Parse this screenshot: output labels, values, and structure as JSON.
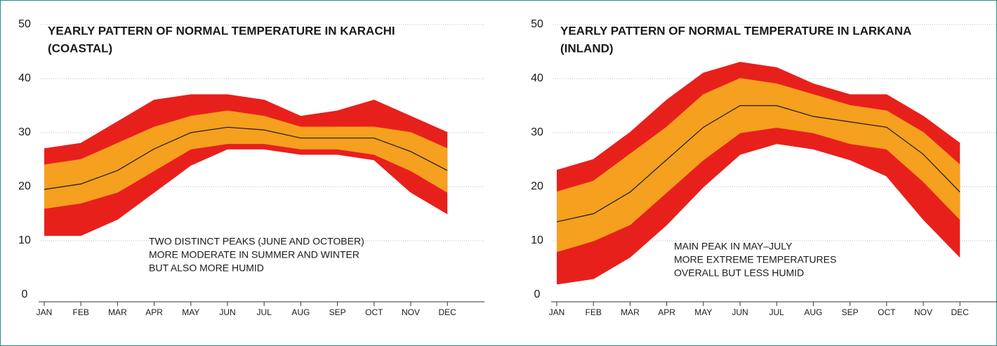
{
  "chart_data": [
    {
      "type": "band",
      "title": [
        "YEARLY PATTERN OF NORMAL TEMPERATURE IN KARACHI",
        "(COASTAL)"
      ],
      "categories": [
        "JAN",
        "FEB",
        "MAR",
        "APR",
        "MAY",
        "JUN",
        "JUL",
        "AUG",
        "SEP",
        "OCT",
        "NOV",
        "DEC"
      ],
      "bands": [
        {
          "color": "#e8201c",
          "high": [
            27,
            28,
            32,
            36,
            37,
            37,
            36,
            33,
            34,
            36,
            33,
            30
          ],
          "low": [
            11,
            11,
            14,
            19,
            24,
            27,
            27,
            26,
            26,
            25,
            19,
            15
          ]
        },
        {
          "color": "#f5a01e",
          "high": [
            24,
            25,
            28,
            31,
            33,
            34,
            33,
            31,
            31,
            31,
            30,
            27
          ],
          "low": [
            16,
            17,
            19,
            23,
            27,
            28,
            28,
            27,
            27,
            26,
            23,
            19
          ]
        }
      ],
      "series": [
        {
          "color": "#1a1a1a",
          "values": [
            19.5,
            20.5,
            23,
            27,
            30,
            31,
            30.5,
            29,
            29,
            29,
            26.5,
            23
          ]
        }
      ],
      "ylim": [
        0,
        50
      ],
      "yticks": [
        0,
        10,
        20,
        30,
        40,
        50
      ],
      "grid": true,
      "annotation": [
        "TWO DISTINCT PEAKS (JUNE AND OCTOBER)",
        "MORE MODERATE IN SUMMER AND WINTER",
        "BUT ALSO MORE HUMID"
      ]
    },
    {
      "type": "band",
      "title": [
        "YEARLY PATTERN OF NORMAL TEMPERATURE IN LARKANA",
        "(INLAND)"
      ],
      "categories": [
        "JAN",
        "FEB",
        "MAR",
        "APR",
        "MAY",
        "JUN",
        "JUL",
        "AUG",
        "SEP",
        "OCT",
        "NOV",
        "DEC"
      ],
      "bands": [
        {
          "color": "#e8201c",
          "high": [
            23,
            25,
            30,
            36,
            41,
            43,
            42,
            39,
            37,
            37,
            33,
            28
          ],
          "low": [
            2,
            3,
            7,
            13,
            20,
            26,
            28,
            27,
            25,
            22,
            14,
            7
          ]
        },
        {
          "color": "#f5a01e",
          "high": [
            19,
            21,
            26,
            31,
            37,
            40,
            39,
            37,
            35,
            34,
            30,
            24
          ],
          "low": [
            8,
            10,
            13,
            19,
            25,
            30,
            31,
            30,
            28,
            27,
            21,
            14
          ]
        }
      ],
      "series": [
        {
          "color": "#1a1a1a",
          "values": [
            13.5,
            15,
            19,
            25,
            31,
            35,
            35,
            33,
            32,
            31,
            26,
            19
          ]
        }
      ],
      "ylim": [
        0,
        50
      ],
      "yticks": [
        0,
        10,
        20,
        30,
        40,
        50
      ],
      "grid": true,
      "annotation": [
        "MAIN PEAK IN MAY–JULY",
        "MORE EXTREME TEMPERATURES",
        "OVERALL BUT LESS HUMID"
      ]
    }
  ]
}
